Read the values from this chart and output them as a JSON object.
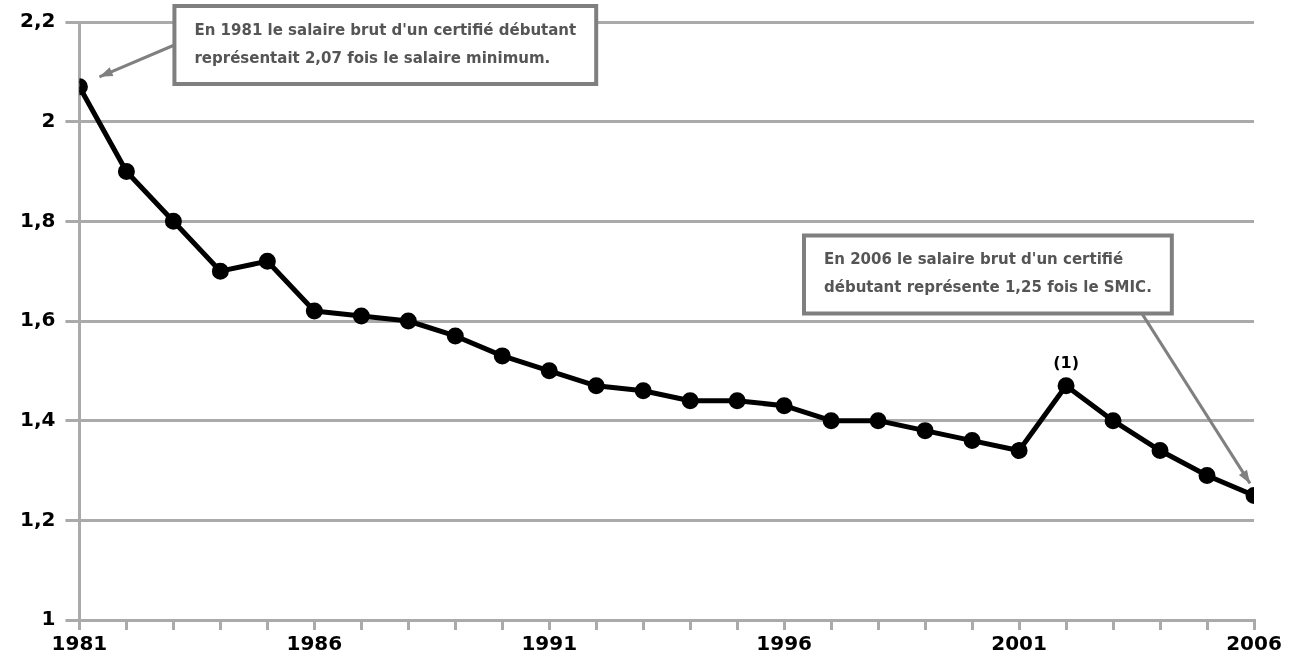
{
  "chart_data": {
    "type": "line",
    "x": [
      1981,
      1982,
      1983,
      1984,
      1985,
      1986,
      1987,
      1988,
      1989,
      1990,
      1991,
      1992,
      1993,
      1994,
      1995,
      1996,
      1997,
      1998,
      1999,
      2000,
      2001,
      2002,
      2003,
      2004,
      2005,
      2006
    ],
    "series": [
      {
        "color": "#000000",
        "values": [
          2.07,
          1.9,
          1.8,
          1.7,
          1.72,
          1.62,
          1.61,
          1.6,
          1.57,
          1.53,
          1.5,
          1.47,
          1.46,
          1.44,
          1.44,
          1.43,
          1.4,
          1.4,
          1.38,
          1.36,
          1.34,
          1.47,
          1.4,
          1.34,
          1.29,
          1.25
        ]
      }
    ],
    "xlim": [
      1981,
      2006
    ],
    "xticks": [
      1981,
      {
        "value": 1982,
        "label": null
      },
      {
        "value": 1983,
        "label": null
      },
      {
        "value": 1984,
        "label": null
      },
      {
        "value": 1985,
        "label": null
      },
      1986,
      {
        "value": 1987,
        "label": null
      },
      {
        "value": 1988,
        "label": null
      },
      {
        "value": 1989,
        "label": null
      },
      {
        "value": 1990,
        "label": null
      },
      1991,
      {
        "value": 1992,
        "label": null
      },
      {
        "value": 1993,
        "label": null
      },
      {
        "value": 1994,
        "label": null
      },
      {
        "value": 1995,
        "label": null
      },
      1996,
      {
        "value": 1997,
        "label": null
      },
      {
        "value": 1998,
        "label": null
      },
      {
        "value": 1999,
        "label": null
      },
      {
        "value": 2000,
        "label": null
      },
      2001,
      {
        "value": 2002,
        "label": null
      },
      {
        "value": 2003,
        "label": null
      },
      {
        "value": 2004,
        "label": null
      },
      {
        "value": 2005,
        "label": null
      },
      2006
    ],
    "ylim": [
      1,
      2.2
    ],
    "yticks": [
      1,
      {
        "value": 1.2,
        "label": "1,2"
      },
      {
        "value": 1.4,
        "label": "1,4"
      },
      {
        "value": 1.6,
        "label": "1,6"
      },
      {
        "value": 1.8,
        "label": "1,8"
      },
      2,
      {
        "value": 2.2,
        "label": "2,2"
      }
    ],
    "grid": "y",
    "legend": false,
    "marker": "circle",
    "line_style": "solid",
    "annotations": [
      "En 1981 le salaire brut d'un certifié débutant\nreprésentait 2,07 fois le salaire minimum.",
      "En 2006 le salaire brut d'un certifié\ndébutant représente 1,25 fois le SMIC.",
      {
        "text": "(1)",
        "x": 2002,
        "y": 1.47
      }
    ]
  }
}
